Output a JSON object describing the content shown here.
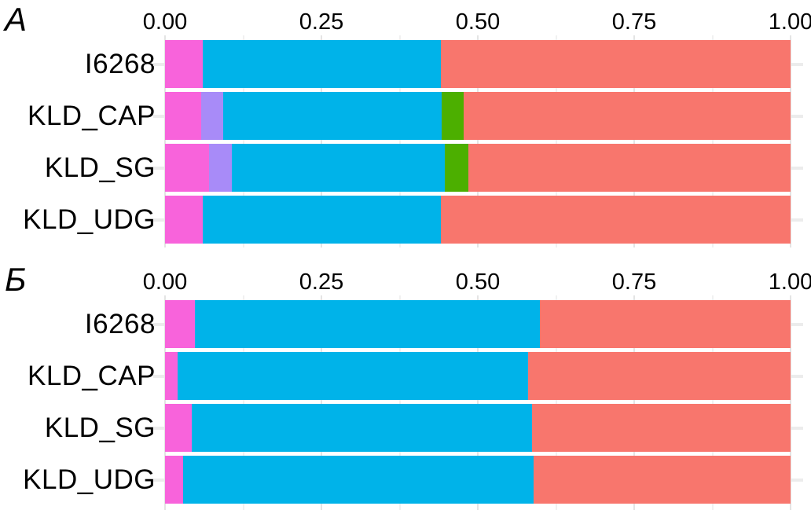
{
  "figure_colors": {
    "magenta": "#F863DB",
    "purple": "#A88BF8",
    "blue": "#00B3E9",
    "green": "#4CAF00",
    "salmon": "#F8766D",
    "gridline_major": "#E4E4E4",
    "gridline_minor": "#F1F1F1",
    "tick": "#ECECEC",
    "text": "#000000"
  },
  "chart_data": [
    {
      "type": "bar",
      "orientation": "horizontal",
      "stacked": true,
      "panel_label": "A",
      "title": "",
      "xlabel": "",
      "ylabel": "",
      "xlim": [
        0,
        1
      ],
      "x_ticks": [
        "0.00",
        "0.25",
        "0.50",
        "0.75",
        "1.00"
      ],
      "minor_gridlines": [
        0.125,
        0.375,
        0.625,
        0.875
      ],
      "grid": true,
      "legend": false,
      "categories": [
        "I6268",
        "KLD_CAP",
        "KLD_SG",
        "KLD_UDG"
      ],
      "series": [
        {
          "name": "magenta",
          "color": "#F863DB",
          "values": [
            0.06,
            0.058,
            0.07,
            0.06
          ]
        },
        {
          "name": "purple",
          "color": "#A88BF8",
          "values": [
            0.0,
            0.035,
            0.037,
            0.0
          ]
        },
        {
          "name": "blue",
          "color": "#00B3E9",
          "values": [
            0.381,
            0.349,
            0.34,
            0.381
          ]
        },
        {
          "name": "green",
          "color": "#4CAF00",
          "values": [
            0.0,
            0.035,
            0.038,
            0.0
          ]
        },
        {
          "name": "salmon",
          "color": "#F8766D",
          "values": [
            0.559,
            0.523,
            0.515,
            0.559
          ]
        }
      ]
    },
    {
      "type": "bar",
      "orientation": "horizontal",
      "stacked": true,
      "panel_label": "Б",
      "title": "",
      "xlabel": "",
      "ylabel": "",
      "xlim": [
        0,
        1
      ],
      "x_ticks": [
        "0.00",
        "0.25",
        "0.50",
        "0.75",
        "1.00"
      ],
      "minor_gridlines": [
        0.125,
        0.375,
        0.625,
        0.875
      ],
      "grid": true,
      "legend": false,
      "categories": [
        "I6268",
        "KLD_CAP",
        "KLD_SG",
        "KLD_UDG"
      ],
      "series": [
        {
          "name": "magenta",
          "color": "#F863DB",
          "values": [
            0.048,
            0.02,
            0.043,
            0.029
          ]
        },
        {
          "name": "purple",
          "color": "#A88BF8",
          "values": [
            0.0,
            0.0,
            0.0,
            0.0
          ]
        },
        {
          "name": "blue",
          "color": "#00B3E9",
          "values": [
            0.551,
            0.56,
            0.544,
            0.56
          ]
        },
        {
          "name": "green",
          "color": "#4CAF00",
          "values": [
            0.0,
            0.0,
            0.0,
            0.0
          ]
        },
        {
          "name": "salmon",
          "color": "#F8766D",
          "values": [
            0.401,
            0.42,
            0.413,
            0.411
          ]
        }
      ]
    }
  ]
}
